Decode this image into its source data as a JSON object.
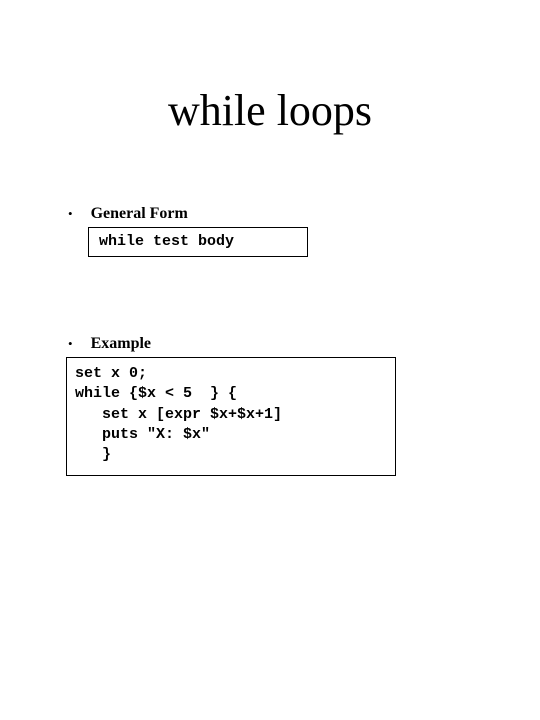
{
  "title": "while loops",
  "section1": {
    "bullet": "•",
    "heading": "General Form",
    "code": "while test body"
  },
  "section2": {
    "bullet": "•",
    "heading": "Example",
    "code_lines": [
      "set x 0;",
      "while {$x < 5  } {",
      "   set x [expr $x+$x+1]",
      "   puts \"X: $x\"",
      "   }"
    ]
  },
  "colors": {
    "background": "#ffffff",
    "text": "#000000",
    "border": "#000000"
  }
}
